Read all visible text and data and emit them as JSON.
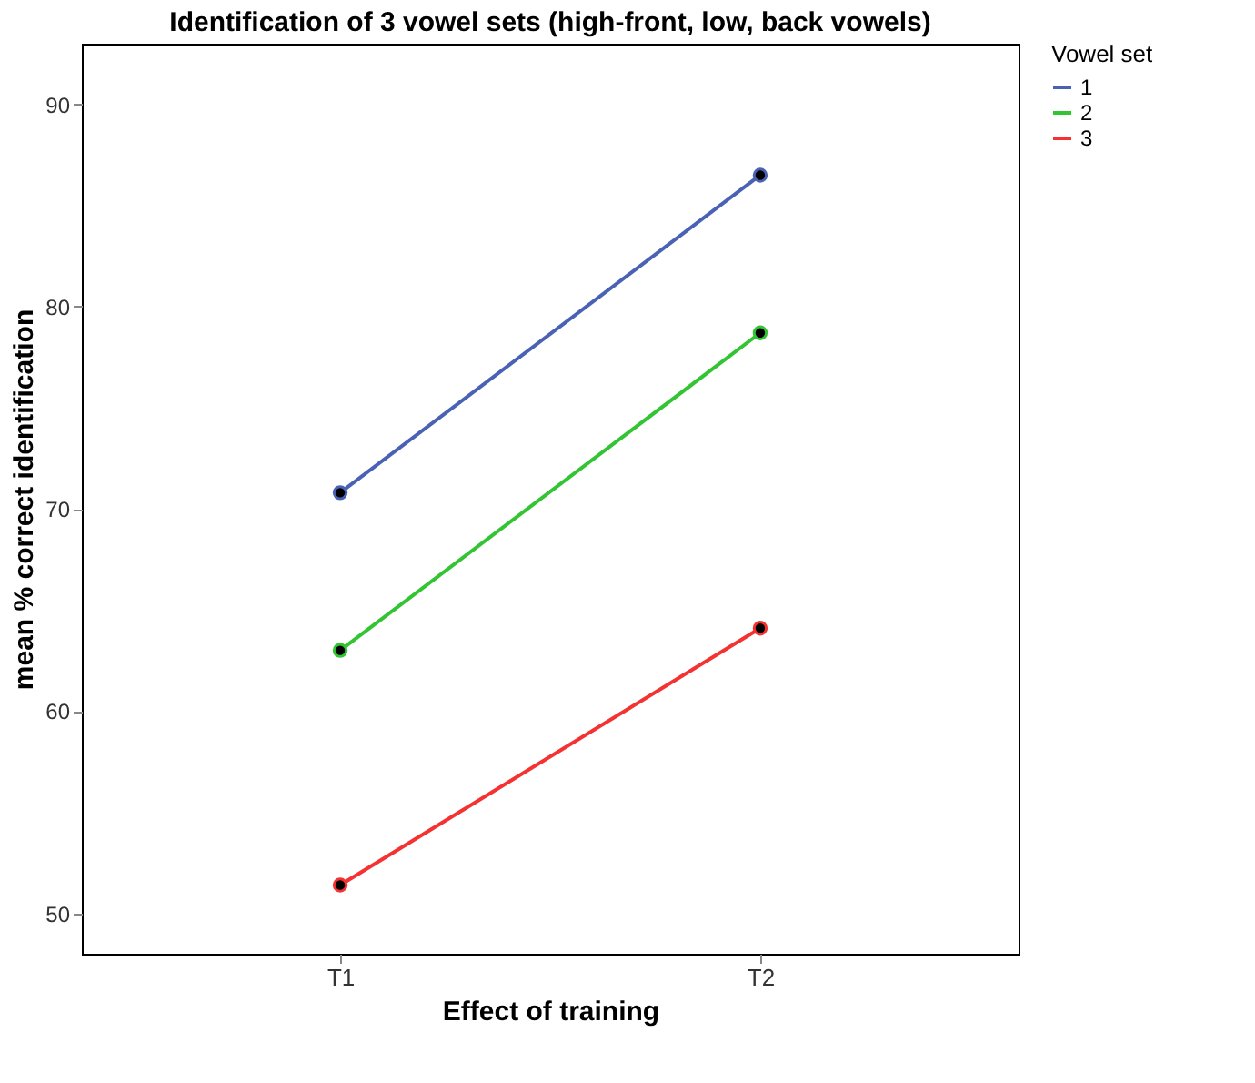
{
  "chart_data": {
    "type": "line",
    "title": "Identification of 3 vowel sets (high-front, low, back vowels)",
    "xlabel": "Effect of training",
    "ylabel": "mean % correct identification",
    "legend_title": "Vowel set",
    "categories": [
      "T1",
      "T2"
    ],
    "series": [
      {
        "name": "1",
        "color": "#4a62b4",
        "values": [
          70.8,
          86.5
        ]
      },
      {
        "name": "2",
        "color": "#33c433",
        "values": [
          63.0,
          78.7
        ]
      },
      {
        "name": "3",
        "color": "#f43232",
        "values": [
          51.4,
          64.1
        ]
      }
    ],
    "ylim": [
      48,
      93
    ],
    "yticks": [
      50,
      60,
      70,
      80,
      90
    ],
    "grid": false,
    "legend": "top right",
    "marker": "circle",
    "line_style": "solid"
  }
}
